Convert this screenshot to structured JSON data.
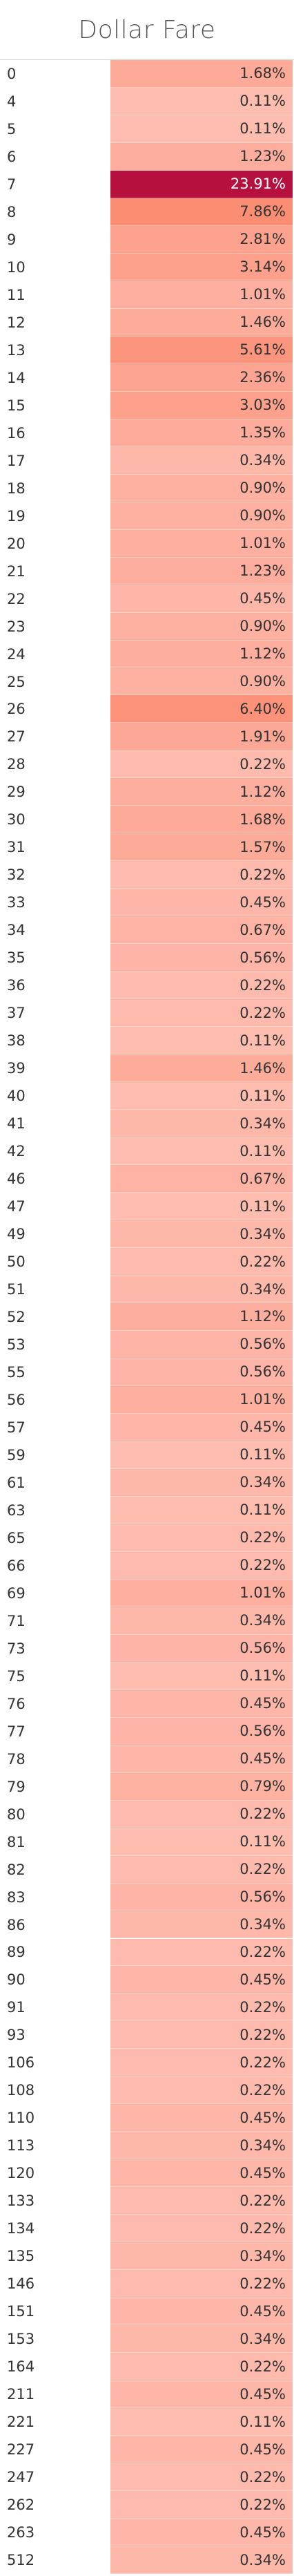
{
  "chart_data": {
    "type": "heatmap",
    "title": "Dollar Fare",
    "categories": [
      "0",
      "4",
      "5",
      "6",
      "7",
      "8",
      "9",
      "10",
      "11",
      "12",
      "13",
      "14",
      "15",
      "16",
      "17",
      "18",
      "19",
      "20",
      "21",
      "22",
      "23",
      "24",
      "25",
      "26",
      "27",
      "28",
      "29",
      "30",
      "31",
      "32",
      "33",
      "34",
      "35",
      "36",
      "37",
      "38",
      "39",
      "40",
      "41",
      "42",
      "46",
      "47",
      "49",
      "50",
      "51",
      "52",
      "53",
      "55",
      "56",
      "57",
      "59",
      "61",
      "63",
      "65",
      "66",
      "69",
      "71",
      "73",
      "75",
      "76",
      "77",
      "78",
      "79",
      "80",
      "81",
      "82",
      "83",
      "86",
      "89",
      "90",
      "91",
      "93",
      "106",
      "108",
      "110",
      "113",
      "120",
      "133",
      "134",
      "135",
      "146",
      "151",
      "153",
      "164",
      "211",
      "221",
      "227",
      "247",
      "262",
      "263",
      "512"
    ],
    "values": [
      1.68,
      0.11,
      0.11,
      1.23,
      23.91,
      7.86,
      2.81,
      3.14,
      1.01,
      1.46,
      5.61,
      2.36,
      3.03,
      1.35,
      0.34,
      0.9,
      0.9,
      1.01,
      1.23,
      0.45,
      0.9,
      1.12,
      0.9,
      6.4,
      1.91,
      0.22,
      1.12,
      1.68,
      1.57,
      0.22,
      0.45,
      0.67,
      0.56,
      0.22,
      0.22,
      0.11,
      1.46,
      0.11,
      0.34,
      0.11,
      0.67,
      0.11,
      0.34,
      0.22,
      0.34,
      1.12,
      0.56,
      0.56,
      1.01,
      0.45,
      0.11,
      0.34,
      0.11,
      0.22,
      0.22,
      1.01,
      0.34,
      0.56,
      0.11,
      0.45,
      0.56,
      0.45,
      0.79,
      0.22,
      0.11,
      0.22,
      0.56,
      0.34,
      0.22,
      0.45,
      0.22,
      0.22,
      0.22,
      0.22,
      0.45,
      0.34,
      0.45,
      0.22,
      0.22,
      0.34,
      0.22,
      0.45,
      0.34,
      0.22,
      0.45,
      0.11,
      0.45,
      0.22,
      0.22,
      0.45,
      0.34
    ],
    "labels": [
      "1.68%",
      "0.11%",
      "0.11%",
      "1.23%",
      "23.91%",
      "7.86%",
      "2.81%",
      "3.14%",
      "1.01%",
      "1.46%",
      "5.61%",
      "2.36%",
      "3.03%",
      "1.35%",
      "0.34%",
      "0.90%",
      "0.90%",
      "1.01%",
      "1.23%",
      "0.45%",
      "0.90%",
      "1.12%",
      "0.90%",
      "6.40%",
      "1.91%",
      "0.22%",
      "1.12%",
      "1.68%",
      "1.57%",
      "0.22%",
      "0.45%",
      "0.67%",
      "0.56%",
      "0.22%",
      "0.22%",
      "0.11%",
      "1.46%",
      "0.11%",
      "0.34%",
      "0.11%",
      "0.67%",
      "0.11%",
      "0.34%",
      "0.22%",
      "0.34%",
      "1.12%",
      "0.56%",
      "0.56%",
      "1.01%",
      "0.45%",
      "0.11%",
      "0.34%",
      "0.11%",
      "0.22%",
      "0.22%",
      "1.01%",
      "0.34%",
      "0.56%",
      "0.11%",
      "0.45%",
      "0.56%",
      "0.45%",
      "0.79%",
      "0.22%",
      "0.11%",
      "0.22%",
      "0.56%",
      "0.34%",
      "0.22%",
      "0.45%",
      "0.22%",
      "0.22%",
      "0.22%",
      "0.22%",
      "0.45%",
      "0.34%",
      "0.45%",
      "0.22%",
      "0.22%",
      "0.34%",
      "0.22%",
      "0.45%",
      "0.34%",
      "0.22%",
      "0.45%",
      "0.11%",
      "0.45%",
      "0.22%",
      "0.22%",
      "0.45%",
      "0.34%"
    ],
    "color_scale": {
      "low": "#ffc3b8",
      "mid": "#fb8a70",
      "high": "#b5103e"
    }
  }
}
